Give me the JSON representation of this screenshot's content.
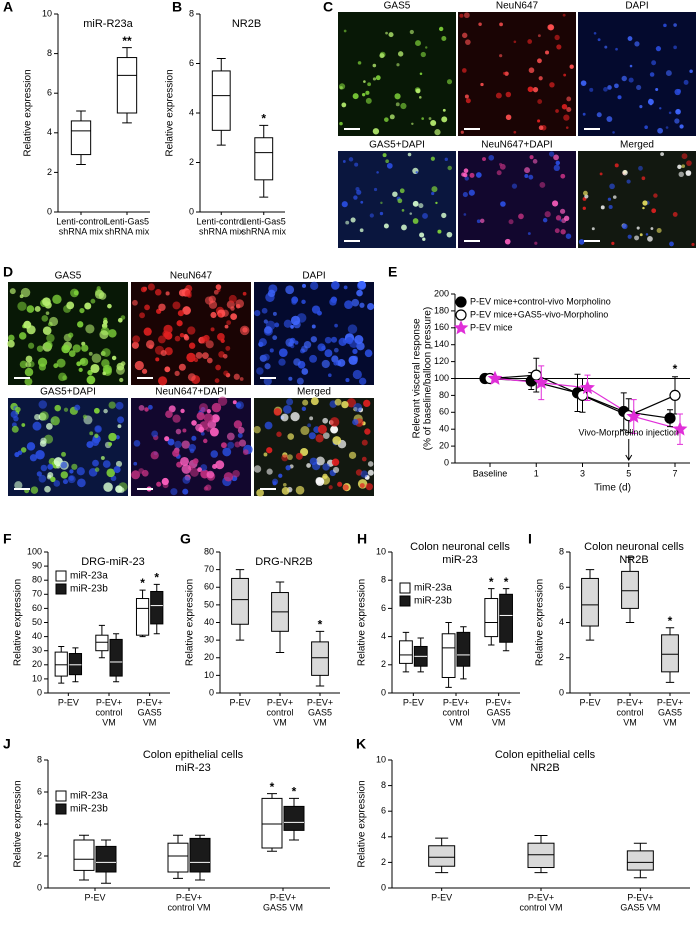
{
  "micrographs": [
    {
      "panel": "C",
      "tiles": [
        "GAS5",
        "NeuN647",
        "DAPI",
        "GAS5+DAPI",
        "NeuN647+DAPI",
        "Merged"
      ]
    },
    {
      "panel": "D",
      "tiles": [
        "GAS5",
        "NeuN647",
        "DAPI",
        "GAS5+DAPI",
        "NeuN647+DAPI",
        "Merged"
      ]
    }
  ],
  "chart_data": [
    {
      "type": "box",
      "panel": "A",
      "title": "miR-R23a",
      "ylabel": "Relative expression",
      "categories": [
        [
          "Lenti-control",
          "shRNA mix"
        ],
        [
          "Lenti-Gas5",
          "shRNA mix"
        ]
      ],
      "ylim": [
        0,
        10
      ],
      "yticks": [
        0,
        2,
        4,
        6,
        8,
        10
      ],
      "series": [
        {
          "color": "#ffffff",
          "values": [
            {
              "min": 2.4,
              "q1": 2.9,
              "median": 4.1,
              "q3": 4.6,
              "max": 5.1
            },
            {
              "min": 4.5,
              "q1": 5.0,
              "median": 6.9,
              "q3": 7.8,
              "max": 8.3
            }
          ],
          "significance": [
            null,
            "**"
          ]
        }
      ]
    },
    {
      "type": "box",
      "panel": "B",
      "title": "NR2B",
      "ylabel": "Relative expression",
      "categories": [
        [
          "Lenti-control",
          "shRNA mix"
        ],
        [
          "Lenti-Gas5",
          "shRNA mix"
        ]
      ],
      "ylim": [
        0,
        8
      ],
      "yticks": [
        0,
        2,
        4,
        6,
        8
      ],
      "series": [
        {
          "color": "#ffffff",
          "values": [
            {
              "min": 2.7,
              "q1": 3.3,
              "median": 4.7,
              "q3": 5.7,
              "max": 6.2
            },
            {
              "min": 0.6,
              "q1": 1.3,
              "median": 2.4,
              "q3": 3.0,
              "max": 3.5
            }
          ],
          "significance": [
            null,
            "*"
          ]
        }
      ]
    },
    {
      "type": "line",
      "panel": "E",
      "ylabel": [
        "Relevant visceral response",
        "(% of baseline/balloon pressure)"
      ],
      "xlabel": "Time (d)",
      "categories": [
        "Baseline",
        "1",
        "3",
        "5",
        "7"
      ],
      "ylim": [
        0,
        200
      ],
      "yticks": [
        0,
        20,
        40,
        60,
        80,
        100,
        120,
        140,
        160,
        180,
        200
      ],
      "reference_line": 100,
      "legend": "upper left",
      "annotation": {
        "text": "Vivo-Morpholino injection",
        "at": "5"
      },
      "significance": [
        null,
        null,
        null,
        null,
        "*"
      ],
      "series": [
        {
          "name": "P-EV mice+control-vivo Morpholino",
          "color": "#000000",
          "marker": "circle",
          "values": [
            100,
            97,
            83,
            61,
            53
          ],
          "errors": [
            0,
            10,
            22,
            22,
            10
          ]
        },
        {
          "name": "P-EV mice+GAS5-vivo-Morpholino",
          "color": "#000000",
          "marker": "open-circle",
          "values": [
            100,
            104,
            80,
            56,
            80
          ],
          "errors": [
            0,
            20,
            20,
            20,
            22
          ]
        },
        {
          "name": "P-EV mice",
          "color": "#e02fd8",
          "marker": "star",
          "values": [
            100,
            95,
            89,
            55,
            40
          ],
          "errors": [
            0,
            20,
            15,
            20,
            18
          ]
        }
      ]
    },
    {
      "type": "box",
      "panel": "F",
      "title": "DRG-miR-23",
      "ylabel": "Relative expression",
      "legend": "upper left",
      "categories": [
        "P-EV",
        [
          "P-EV+",
          "control",
          "VM"
        ],
        [
          "P-EV+",
          "GAS5",
          "VM"
        ]
      ],
      "ylim": [
        0,
        100
      ],
      "yticks": [
        0,
        10,
        20,
        30,
        40,
        50,
        60,
        70,
        80,
        90,
        100
      ],
      "series": [
        {
          "name": "miR-23a",
          "color": "#ffffff",
          "values": [
            {
              "min": 7,
              "q1": 12,
              "median": 20,
              "q3": 29,
              "max": 33
            },
            {
              "min": 25,
              "q1": 30,
              "median": 36,
              "q3": 41,
              "max": 48
            },
            {
              "min": 40,
              "q1": 41,
              "median": 60,
              "q3": 67,
              "max": 73
            }
          ],
          "significance": [
            null,
            null,
            "*"
          ]
        },
        {
          "name": "miR-23b",
          "color": "#1a1a1a",
          "values": [
            {
              "min": 8,
              "q1": 13,
              "median": 20,
              "q3": 28,
              "max": 32
            },
            {
              "min": 8,
              "q1": 12,
              "median": 22,
              "q3": 38,
              "max": 42
            },
            {
              "min": 42,
              "q1": 49,
              "median": 62,
              "q3": 72,
              "max": 77
            }
          ],
          "significance": [
            null,
            null,
            "*"
          ]
        }
      ]
    },
    {
      "type": "box",
      "panel": "G",
      "title": "DRG-NR2B",
      "ylabel": "Relative expression",
      "categories": [
        "P-EV",
        [
          "P-EV+",
          "control",
          "VM"
        ],
        [
          "P-EV+",
          "GAS5",
          "VM"
        ]
      ],
      "ylim": [
        0,
        80
      ],
      "yticks": [
        0,
        10,
        20,
        30,
        40,
        50,
        60,
        70,
        80
      ],
      "series": [
        {
          "color": "#d9d9d9",
          "values": [
            {
              "min": 30,
              "q1": 39,
              "median": 53,
              "q3": 65,
              "max": 70
            },
            {
              "min": 23,
              "q1": 35,
              "median": 46,
              "q3": 57,
              "max": 63
            },
            {
              "min": 4,
              "q1": 10,
              "median": 20,
              "q3": 29,
              "max": 35
            }
          ],
          "significance": [
            null,
            null,
            "*"
          ]
        }
      ]
    },
    {
      "type": "box",
      "panel": "H",
      "title": [
        "Colon neuronal cells",
        "miR-23"
      ],
      "ylabel": "Relative expression",
      "legend": "upper left",
      "categories": [
        "P-EV",
        [
          "P-EV+",
          "control",
          "VM"
        ],
        [
          "P-EV+",
          "GAS5",
          "VM"
        ]
      ],
      "ylim": [
        0,
        10
      ],
      "yticks": [
        0,
        2,
        4,
        6,
        8,
        10
      ],
      "series": [
        {
          "name": "miR-23a",
          "color": "#ffffff",
          "values": [
            {
              "min": 1.5,
              "q1": 2.1,
              "median": 2.7,
              "q3": 3.7,
              "max": 4.3
            },
            {
              "min": 0.4,
              "q1": 1.1,
              "median": 3.2,
              "q3": 4.2,
              "max": 5.0
            },
            {
              "min": 3.4,
              "q1": 4.0,
              "median": 5.0,
              "q3": 6.7,
              "max": 7.4
            }
          ],
          "significance": [
            null,
            null,
            "*"
          ]
        },
        {
          "name": "miR-23b",
          "color": "#1a1a1a",
          "values": [
            {
              "min": 1.5,
              "q1": 1.9,
              "median": 2.6,
              "q3": 3.3,
              "max": 3.9
            },
            {
              "min": 1.0,
              "q1": 1.9,
              "median": 2.7,
              "q3": 4.3,
              "max": 4.7
            },
            {
              "min": 3.0,
              "q1": 3.6,
              "median": 5.5,
              "q3": 7.0,
              "max": 7.4
            }
          ],
          "significance": [
            null,
            null,
            "*"
          ]
        }
      ]
    },
    {
      "type": "box",
      "panel": "I",
      "title": [
        "Colon neuronal cells",
        "NR2B"
      ],
      "ylabel": "Relative expression",
      "categories": [
        "P-EV",
        [
          "P-EV+",
          "control",
          "VM"
        ],
        [
          "P-EV+",
          "GAS5",
          "VM"
        ]
      ],
      "ylim": [
        0,
        8
      ],
      "yticks": [
        0,
        2,
        4,
        6,
        8
      ],
      "series": [
        {
          "color": "#d9d9d9",
          "values": [
            {
              "min": 3.0,
              "q1": 3.8,
              "median": 5.0,
              "q3": 6.5,
              "max": 7.0
            },
            {
              "min": 4.0,
              "q1": 4.8,
              "median": 5.8,
              "q3": 6.9,
              "max": 7.7
            },
            {
              "min": 0.6,
              "q1": 1.2,
              "median": 2.2,
              "q3": 3.3,
              "max": 3.7
            }
          ],
          "significance": [
            null,
            null,
            "*"
          ]
        }
      ]
    },
    {
      "type": "box",
      "panel": "J",
      "title": [
        "Colon epithelial cells",
        "miR-23"
      ],
      "ylabel": "Relative expression",
      "legend": "upper left",
      "categories": [
        "P-EV",
        [
          "P-EV+",
          "control VM"
        ],
        [
          "P-EV+",
          "GAS5 VM"
        ]
      ],
      "ylim": [
        0,
        8
      ],
      "yticks": [
        0,
        2,
        4,
        6,
        8
      ],
      "series": [
        {
          "name": "miR-23a",
          "color": "#ffffff",
          "values": [
            {
              "min": 0.5,
              "q1": 1.1,
              "median": 1.8,
              "q3": 3.0,
              "max": 3.3
            },
            {
              "min": 0.6,
              "q1": 1.0,
              "median": 2.0,
              "q3": 2.8,
              "max": 3.3
            },
            {
              "min": 2.3,
              "q1": 2.5,
              "median": 4.0,
              "q3": 5.6,
              "max": 5.9
            }
          ],
          "significance": [
            null,
            null,
            "*"
          ]
        },
        {
          "name": "miR-23b",
          "color": "#1a1a1a",
          "values": [
            {
              "min": 0.3,
              "q1": 1.0,
              "median": 1.6,
              "q3": 2.6,
              "max": 3.0
            },
            {
              "min": 0.5,
              "q1": 1.0,
              "median": 1.6,
              "q3": 3.1,
              "max": 3.3
            },
            {
              "min": 3.0,
              "q1": 3.6,
              "median": 4.1,
              "q3": 5.1,
              "max": 5.6
            }
          ],
          "significance": [
            null,
            null,
            "*"
          ]
        }
      ]
    },
    {
      "type": "box",
      "panel": "K",
      "title": [
        "Colon epithelial cells",
        "NR2B"
      ],
      "ylabel": "Relative expression",
      "categories": [
        "P-EV",
        [
          "P-EV+",
          "control VM"
        ],
        [
          "P-EV+",
          "GAS5 VM"
        ]
      ],
      "ylim": [
        0,
        10
      ],
      "yticks": [
        0,
        2,
        4,
        6,
        8,
        10
      ],
      "series": [
        {
          "color": "#d9d9d9",
          "values": [
            {
              "min": 1.2,
              "q1": 1.7,
              "median": 2.4,
              "q3": 3.3,
              "max": 3.9
            },
            {
              "min": 1.2,
              "q1": 1.6,
              "median": 2.6,
              "q3": 3.5,
              "max": 4.1
            },
            {
              "min": 0.8,
              "q1": 1.4,
              "median": 2.0,
              "q3": 2.9,
              "max": 3.5
            }
          ],
          "significance": [
            null,
            null,
            null
          ]
        }
      ]
    }
  ]
}
